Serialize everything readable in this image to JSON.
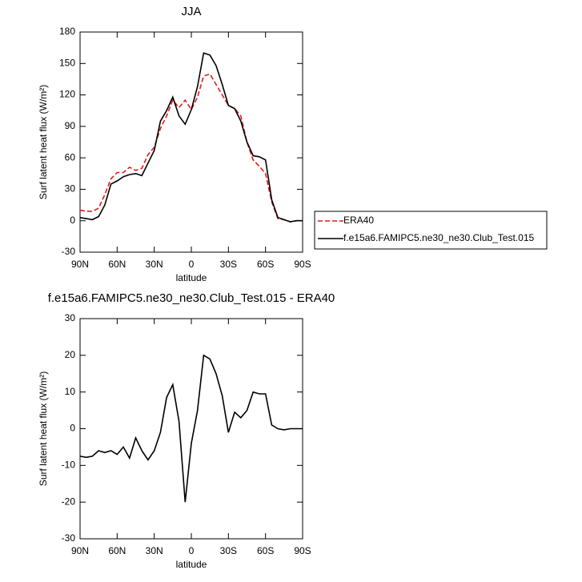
{
  "chart_data": [
    {
      "type": "line",
      "title": "JJA",
      "xlabel": "latitude",
      "ylabel": "Surf latent heat flux (W/m²)",
      "x": [
        90,
        85,
        80,
        75,
        70,
        65,
        60,
        55,
        50,
        45,
        40,
        35,
        30,
        25,
        20,
        15,
        10,
        5,
        0,
        -5,
        -10,
        -15,
        -20,
        -25,
        -30,
        -35,
        -40,
        -45,
        -50,
        -55,
        -60,
        -65,
        -70,
        -75,
        -80,
        -85,
        -90
      ],
      "series": [
        {
          "name": "ERA40",
          "color": "#e41a1c",
          "line_style": "dashed",
          "values": [
            10,
            9,
            9,
            12,
            25,
            40,
            46,
            46,
            51,
            48,
            50,
            63,
            70,
            88,
            100,
            115,
            108,
            115,
            106,
            118,
            138,
            140,
            130,
            120,
            110,
            107,
            100,
            75,
            58,
            52,
            45,
            18,
            2,
            1,
            -1,
            0,
            0
          ]
        },
        {
          "name": "f.e15a6.FAMIPC5.ne30_ne30.Club_Test.015",
          "color": "#000000",
          "line_style": "solid",
          "values": [
            3,
            2,
            1,
            4,
            15,
            35,
            38,
            42,
            44,
            45,
            43,
            55,
            67,
            95,
            105,
            118,
            100,
            92,
            106,
            128,
            160,
            158,
            148,
            130,
            110,
            107,
            95,
            75,
            62,
            61,
            58,
            20,
            3,
            1,
            -1,
            0,
            0
          ]
        }
      ],
      "xlim": [
        90,
        -90
      ],
      "xticks": [
        {
          "value": 90,
          "label": "90N"
        },
        {
          "value": 60,
          "label": "60N"
        },
        {
          "value": 30,
          "label": "30N"
        },
        0,
        {
          "value": -30,
          "label": "30S"
        },
        {
          "value": -60,
          "label": "60S"
        },
        {
          "value": -90,
          "label": "90S"
        }
      ],
      "ylim": [
        -30,
        180
      ],
      "yticks": [
        -30,
        0,
        30,
        60,
        90,
        120,
        150,
        180
      ],
      "legend": "right"
    },
    {
      "type": "line",
      "title": "f.e15a6.FAMIPC5.ne30_ne30.Club_Test.015 - ERA40",
      "xlabel": "latitude",
      "ylabel": "Surf latent heat flux (W/m²)",
      "x": [
        90,
        85,
        80,
        75,
        70,
        65,
        60,
        55,
        50,
        45,
        40,
        35,
        30,
        25,
        20,
        15,
        10,
        5,
        0,
        -5,
        -10,
        -15,
        -20,
        -25,
        -30,
        -35,
        -40,
        -45,
        -50,
        -55,
        -60,
        -65,
        -70,
        -75,
        -80,
        -85,
        -90
      ],
      "series": [
        {
          "name": null,
          "color": "#000000",
          "line_style": "solid",
          "values": [
            -7.5,
            -7.8,
            -7.5,
            -6,
            -6.5,
            -6,
            -7,
            -5,
            -8,
            -2.5,
            -6,
            -8.5,
            -6,
            -1,
            8.5,
            12,
            2,
            -20,
            -4,
            5,
            20,
            19,
            15,
            9,
            -1,
            4.5,
            3,
            5,
            10,
            9.5,
            9.5,
            1,
            0,
            -0.3,
            0,
            0,
            0
          ]
        }
      ],
      "xlim": [
        90,
        -90
      ],
      "xticks": [
        {
          "value": 90,
          "label": "90N"
        },
        {
          "value": 60,
          "label": "60N"
        },
        {
          "value": 30,
          "label": "30N"
        },
        0,
        {
          "value": -30,
          "label": "30S"
        },
        {
          "value": -60,
          "label": "60S"
        },
        {
          "value": -90,
          "label": "90S"
        }
      ],
      "ylim": [
        -30,
        30
      ],
      "yticks": [
        -30,
        -20,
        -10,
        0,
        10,
        20,
        30
      ]
    }
  ]
}
